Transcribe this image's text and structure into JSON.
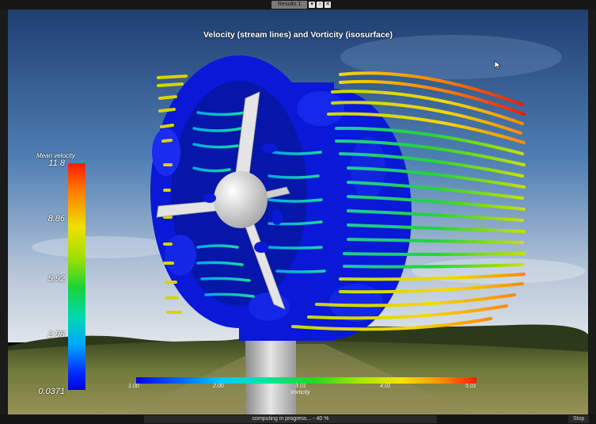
{
  "window": {
    "result_tab_label": "Results 1",
    "ctrl_menu": "▾",
    "ctrl_float": "▫",
    "ctrl_close": "✕"
  },
  "viewport": {
    "title": "Velocity (stream lines) and Vorticity (isosurface)"
  },
  "velocity_legend": {
    "title": "Mean velocity",
    "ticks": [
      "11.8",
      "8.86",
      "5.92",
      "2.98",
      "0.0371"
    ]
  },
  "vorticity_legend": {
    "label": "Vorticity",
    "ticks": [
      "1.00",
      "2.00",
      "3.01",
      "4.01",
      "5.01"
    ]
  },
  "status": {
    "message": "computing in progress... - 40 %",
    "stop_label": "Stop"
  },
  "icons": {
    "cursor": "mouse-pointer-icon",
    "menu": "dropdown-arrow-icon",
    "float": "float-window-icon",
    "close": "close-icon"
  },
  "colors": {
    "vorticity_isosurface": "#0a18d8",
    "turbine": "#e6e6e6",
    "sky_top": "#2d5a96",
    "sky_bottom": "#c9d4e0",
    "ground": "#5b6a2c"
  }
}
